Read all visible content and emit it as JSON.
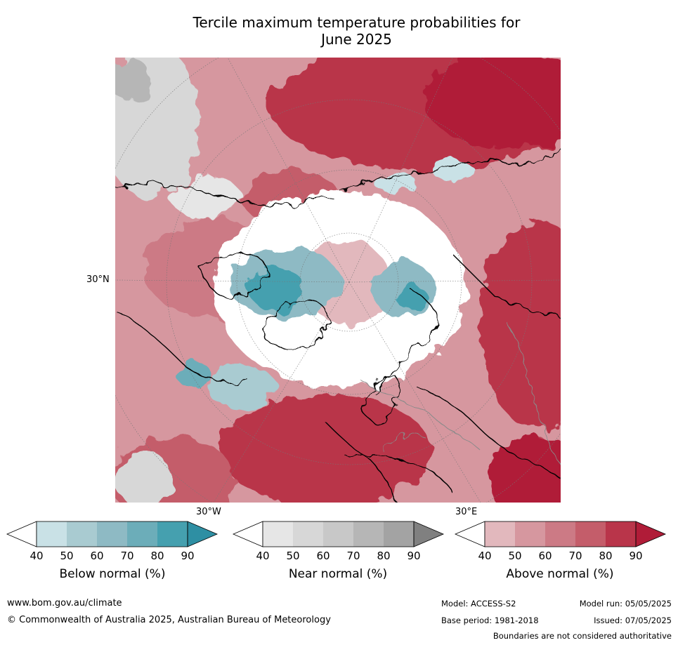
{
  "title_line1": "Tercile maximum temperature probabilities for",
  "title_line2": "June 2025",
  "map_labels": {
    "lat_30n": "30°N",
    "lon_30w": "30°W",
    "lon_30e": "30°E"
  },
  "colorbars": [
    {
      "title": "Below normal (%)",
      "ticks": [
        "40",
        "50",
        "60",
        "70",
        "80",
        "90"
      ],
      "colors": [
        "#ffffff",
        "#c9e1e6",
        "#a9cbd1",
        "#8ebac4",
        "#6cadb9",
        "#45a0af",
        "#2e8fa3"
      ]
    },
    {
      "title": "Near normal (%)",
      "ticks": [
        "40",
        "50",
        "60",
        "70",
        "80",
        "90"
      ],
      "colors": [
        "#ffffff",
        "#e6e6e6",
        "#d7d7d7",
        "#c8c8c8",
        "#b6b6b6",
        "#a3a3a3",
        "#808080"
      ]
    },
    {
      "title": "Above normal (%)",
      "ticks": [
        "40",
        "50",
        "60",
        "70",
        "80",
        "90"
      ],
      "colors": [
        "#ffffff",
        "#e2b8bd",
        "#d6979f",
        "#cc7a85",
        "#c45d6a",
        "#b9354a",
        "#b01c38"
      ]
    }
  ],
  "footer": {
    "url": "www.bom.gov.au/climate",
    "copyright": "© Commonwealth of Australia 2025, Australian Bureau of Meteorology",
    "model": "Model: ACCESS-S2",
    "base_period": "Base period: 1981-2018",
    "model_run": "Model run: 05/05/2025",
    "issued": "Issued: 07/05/2025",
    "disclaimer": "Boundaries are not considered authoritative"
  }
}
